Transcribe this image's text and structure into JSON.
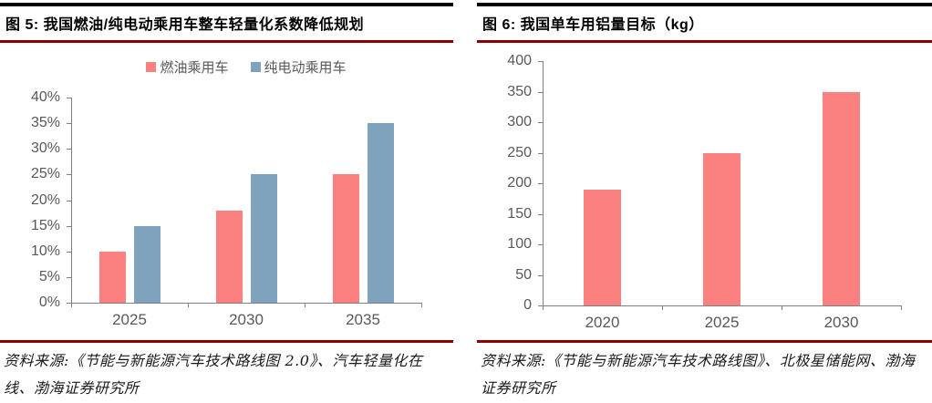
{
  "panels": [
    {
      "id": "figure-5",
      "title": "图 5:  我国燃油/纯电动乘用车整车轻量化系数降低规划",
      "source": "资料来源:《节能与新能源汽车技术路线图 2.0》、汽车轻量化在线、渤海证券研究所"
    },
    {
      "id": "figure-6",
      "title": "图 6:  我国单车用铝量目标（kg）",
      "source": "资料来源:《节能与新能源汽车技术路线图》、北极星储能网、渤海证券研究所"
    }
  ],
  "chart_data": [
    {
      "type": "bar",
      "title": "我国燃油/纯电动乘用车整车轻量化系数降低规划",
      "categories": [
        "2025",
        "2030",
        "2035"
      ],
      "series": [
        {
          "name": "燃油乘用车",
          "color": "#FB8080",
          "values": [
            10,
            18,
            25
          ]
        },
        {
          "name": "纯电动乘用车",
          "color": "#7FA3BC",
          "values": [
            15,
            25,
            35
          ]
        }
      ],
      "ylim": [
        0,
        40
      ],
      "ytick_step": 5,
      "ytick_suffix": "%",
      "legend_position": "top",
      "grid": false
    },
    {
      "type": "bar",
      "title": "我国单车用铝量目标（kg）",
      "categories": [
        "2020",
        "2025",
        "2030"
      ],
      "series": [
        {
          "name": "单车用铝量目标（kg）",
          "color": "#FB8080",
          "values": [
            190,
            250,
            350
          ]
        }
      ],
      "ylim": [
        0,
        400
      ],
      "ytick_step": 50,
      "ytick_suffix": "",
      "legend_position": "none",
      "grid": false
    }
  ],
  "colors": {
    "header_top_line": "#000000",
    "header_underline": "#8B0000",
    "footer_line": "#8B0000",
    "axis_line": "#808080",
    "axis_label": "#595959",
    "bar_red": "#FB8080",
    "bar_blue": "#7FA3BC"
  }
}
